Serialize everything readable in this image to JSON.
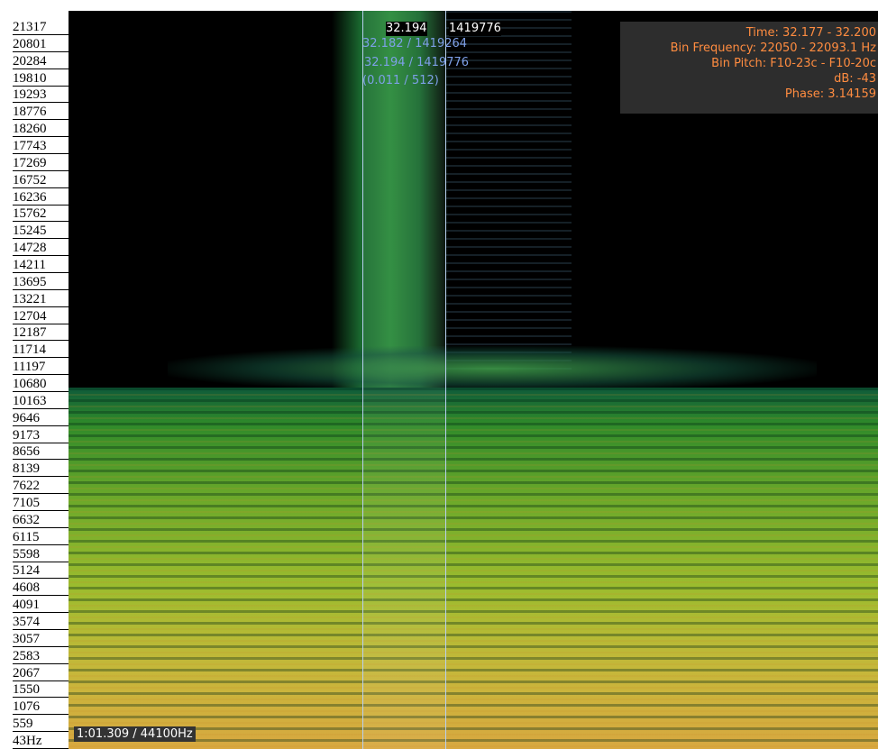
{
  "freq_axis": {
    "labels": [
      "21317",
      "20801",
      "20284",
      "19810",
      "19293",
      "18776",
      "18260",
      "17743",
      "17269",
      "16752",
      "16236",
      "15762",
      "15245",
      "14728",
      "14211",
      "13695",
      "13221",
      "12704",
      "12187",
      "11714",
      "11197",
      "10680",
      "10163",
      "9646",
      "9173",
      "8656",
      "8139",
      "7622",
      "7105",
      "6632",
      "6115",
      "5598",
      "5124",
      "4608",
      "4091",
      "3574",
      "3057",
      "2583",
      "2067",
      "1550",
      "1076",
      "559",
      "43Hz"
    ]
  },
  "selection": {
    "header_time": "32.194",
    "header_sample": "1419776",
    "start": "32.182 / 1419264",
    "end": "32.194 / 1419776",
    "length": "(0.011 / 512)"
  },
  "info_box": {
    "time": "Time: 32.177 - 32.200",
    "bin_frequency": "Bin Frequency: 22050 - 22093.1 Hz",
    "bin_pitch": "Bin Pitch: F10-23c - F10-20c",
    "db": "dB: -43",
    "phase": "Phase: 3.14159"
  },
  "status": {
    "position": "1:01.309 / 44100Hz"
  }
}
